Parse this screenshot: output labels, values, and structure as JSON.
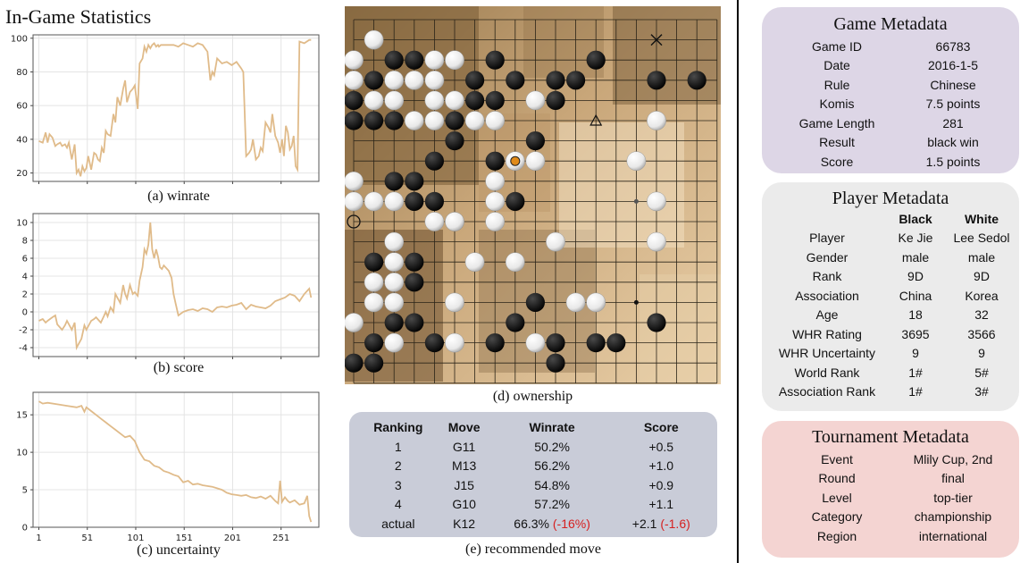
{
  "stats_title": "In-Game Statistics",
  "colors": {
    "line": "#e0bb8a",
    "game_panel": "#ddd6e6",
    "player_panel": "#ebebeb",
    "tournament_panel": "#f4d4d2",
    "rec_panel": "#c9ccd8"
  },
  "chart_data": [
    {
      "type": "line",
      "caption": "(a) winrate",
      "ylim": [
        15,
        102
      ],
      "yticks": [
        20,
        40,
        60,
        80,
        100
      ],
      "x": [
        1,
        5,
        8,
        10,
        12,
        15,
        18,
        20,
        23,
        25,
        28,
        30,
        32,
        35,
        38,
        40,
        42,
        44,
        46,
        48,
        50,
        52,
        55,
        58,
        60,
        62,
        64,
        66,
        68,
        70,
        72,
        75,
        78,
        80,
        82,
        85,
        88,
        90,
        92,
        95,
        98,
        100,
        103,
        105,
        108,
        110,
        112,
        114,
        116,
        118,
        120,
        122,
        124,
        125,
        127,
        130,
        135,
        140,
        145,
        150,
        155,
        160,
        165,
        170,
        175,
        178,
        180,
        182,
        185,
        190,
        195,
        200,
        205,
        210,
        212,
        215,
        218,
        220,
        222,
        225,
        228,
        230,
        232,
        235,
        238,
        240,
        242,
        245,
        248,
        250,
        252,
        254,
        256,
        258,
        260,
        262,
        264,
        266,
        268,
        270,
        275,
        280,
        282
      ],
      "values": [
        39,
        38,
        44,
        38,
        43,
        41,
        36,
        37,
        38,
        36,
        37,
        35,
        38,
        28,
        37,
        20,
        22,
        18,
        24,
        21,
        23,
        30,
        22,
        32,
        31,
        28,
        27,
        35,
        32,
        45,
        43,
        42,
        55,
        50,
        65,
        60,
        70,
        75,
        62,
        68,
        70,
        72,
        58,
        85,
        88,
        95,
        92,
        96,
        94,
        96,
        97,
        95,
        96,
        95,
        96,
        96,
        96,
        96,
        95,
        97,
        96,
        95,
        97,
        96,
        92,
        75,
        80,
        78,
        88,
        85,
        86,
        84,
        86,
        82,
        80,
        30,
        32,
        34,
        40,
        28,
        30,
        35,
        33,
        50,
        47,
        44,
        55,
        42,
        38,
        32,
        40,
        30,
        48,
        44,
        34,
        36,
        42,
        24,
        22,
        98,
        97,
        99,
        99
      ]
    },
    {
      "type": "line",
      "caption": "(b) score",
      "ylim": [
        -5,
        11
      ],
      "yticks": [
        -4,
        -2,
        0,
        2,
        4,
        6,
        8,
        10
      ],
      "x": [
        1,
        5,
        8,
        10,
        15,
        18,
        20,
        25,
        28,
        30,
        35,
        38,
        40,
        45,
        48,
        50,
        55,
        58,
        60,
        65,
        68,
        70,
        72,
        75,
        78,
        80,
        85,
        88,
        90,
        92,
        95,
        98,
        100,
        103,
        105,
        108,
        110,
        112,
        114,
        116,
        118,
        120,
        122,
        124,
        126,
        128,
        130,
        135,
        138,
        140,
        142,
        145,
        150,
        155,
        160,
        165,
        170,
        175,
        180,
        185,
        190,
        195,
        200,
        205,
        210,
        215,
        220,
        225,
        230,
        235,
        240,
        245,
        250,
        255,
        260,
        265,
        270,
        275,
        280,
        282
      ],
      "values": [
        -1,
        -0.8,
        -1.2,
        -1,
        -0.6,
        -0.4,
        -1.4,
        -2,
        -1.5,
        -1,
        -2,
        -1.2,
        -4,
        -3,
        -1.5,
        -2,
        -1,
        -0.8,
        -0.6,
        -1.2,
        -0.5,
        0,
        -0.5,
        0.5,
        0,
        2,
        1,
        3,
        2,
        1.5,
        3,
        2,
        2.2,
        1.8,
        3.5,
        5,
        7,
        6.5,
        7.5,
        10,
        7,
        6,
        7,
        6.2,
        5,
        4.8,
        5.2,
        4.6,
        3.8,
        2,
        1,
        -0.4,
        0,
        0.2,
        0.3,
        0.1,
        0.4,
        0.3,
        0,
        0.5,
        0.6,
        0.5,
        0.7,
        0.8,
        1,
        0.3,
        0.8,
        0.6,
        0.5,
        0.4,
        0.7,
        1.2,
        1.4,
        1.6,
        2,
        1.8,
        1.2,
        2,
        2.6,
        1.6
      ]
    },
    {
      "type": "line",
      "caption": "(c) uncertainty",
      "ylim": [
        0,
        18
      ],
      "yticks": [
        0,
        5,
        10,
        15
      ],
      "xticks": [
        1,
        51,
        101,
        151,
        201,
        251
      ],
      "xlim": [
        -5,
        290
      ],
      "x": [
        1,
        5,
        10,
        20,
        30,
        40,
        45,
        48,
        50,
        55,
        60,
        65,
        70,
        75,
        80,
        85,
        90,
        95,
        100,
        105,
        110,
        115,
        120,
        125,
        130,
        135,
        140,
        145,
        150,
        155,
        160,
        165,
        170,
        175,
        180,
        185,
        190,
        195,
        200,
        205,
        210,
        215,
        220,
        225,
        230,
        235,
        240,
        245,
        248,
        250,
        252,
        255,
        258,
        260,
        265,
        270,
        275,
        278,
        280,
        282
      ],
      "values": [
        16.8,
        16.5,
        16.6,
        16.4,
        16.2,
        16,
        16.2,
        15.4,
        16,
        15.5,
        15,
        14.5,
        14,
        13.5,
        13,
        12.5,
        12,
        12.2,
        11.5,
        10,
        9,
        8.8,
        8.2,
        8,
        7.5,
        7.3,
        7,
        6.8,
        6,
        6.2,
        5.7,
        5.8,
        5.6,
        5.5,
        5.4,
        5.2,
        5,
        4.6,
        4.4,
        4.3,
        4.2,
        4.3,
        4,
        3.9,
        4.1,
        3.8,
        4.2,
        3.5,
        3.2,
        6.2,
        3.4,
        4,
        3.5,
        3.3,
        3.6,
        3,
        3.2,
        4.2,
        1.5,
        0.7
      ]
    }
  ],
  "ownership_caption": "(d) ownership",
  "board": {
    "black": [
      [
        2,
        2
      ],
      [
        3,
        2
      ],
      [
        7,
        2
      ],
      [
        12,
        2
      ],
      [
        1,
        3
      ],
      [
        6,
        3
      ],
      [
        8,
        3
      ],
      [
        10,
        3
      ],
      [
        11,
        3
      ],
      [
        15,
        3
      ],
      [
        17,
        3
      ],
      [
        0,
        4
      ],
      [
        6,
        4
      ],
      [
        7,
        4
      ],
      [
        10,
        4
      ],
      [
        0,
        5
      ],
      [
        1,
        5
      ],
      [
        2,
        5
      ],
      [
        5,
        5
      ],
      [
        5,
        6
      ],
      [
        9,
        6
      ],
      [
        4,
        7
      ],
      [
        7,
        7
      ],
      [
        2,
        8
      ],
      [
        3,
        8
      ],
      [
        3,
        9
      ],
      [
        4,
        9
      ],
      [
        8,
        9
      ],
      [
        5,
        10
      ],
      [
        1,
        12
      ],
      [
        3,
        12
      ],
      [
        3,
        13
      ],
      [
        9,
        14
      ],
      [
        2,
        15
      ],
      [
        3,
        15
      ],
      [
        8,
        15
      ],
      [
        15,
        15
      ],
      [
        1,
        16
      ],
      [
        4,
        16
      ],
      [
        7,
        16
      ],
      [
        10,
        16
      ],
      [
        12,
        16
      ],
      [
        13,
        16
      ],
      [
        0,
        17
      ],
      [
        1,
        17
      ],
      [
        10,
        17
      ]
    ],
    "white": [
      [
        1,
        1
      ],
      [
        0,
        2
      ],
      [
        4,
        2
      ],
      [
        5,
        2
      ],
      [
        0,
        3
      ],
      [
        2,
        3
      ],
      [
        3,
        3
      ],
      [
        4,
        3
      ],
      [
        1,
        4
      ],
      [
        2,
        4
      ],
      [
        4,
        4
      ],
      [
        5,
        4
      ],
      [
        9,
        4
      ],
      [
        3,
        5
      ],
      [
        4,
        5
      ],
      [
        6,
        5
      ],
      [
        7,
        5
      ],
      [
        15,
        5
      ],
      [
        9,
        7
      ],
      [
        14,
        7
      ],
      [
        0,
        8
      ],
      [
        7,
        8
      ],
      [
        0,
        9
      ],
      [
        1,
        9
      ],
      [
        2,
        9
      ],
      [
        7,
        9
      ],
      [
        15,
        9
      ],
      [
        4,
        10
      ],
      [
        5,
        10
      ],
      [
        7,
        10
      ],
      [
        2,
        11
      ],
      [
        10,
        11
      ],
      [
        15,
        11
      ],
      [
        2,
        12
      ],
      [
        6,
        12
      ],
      [
        8,
        12
      ],
      [
        1,
        13
      ],
      [
        2,
        13
      ],
      [
        1,
        14
      ],
      [
        2,
        14
      ],
      [
        5,
        14
      ],
      [
        11,
        14
      ],
      [
        12,
        14
      ],
      [
        0,
        15
      ],
      [
        2,
        16
      ],
      [
        5,
        16
      ],
      [
        9,
        16
      ]
    ],
    "last_move": [
      8,
      7
    ],
    "circle_mark": [
      0,
      10
    ],
    "triangle_mark": [
      12,
      5
    ],
    "cross_mark": [
      15,
      1
    ],
    "small_dots": [
      [
        8,
        3
      ],
      [
        14,
        9
      ],
      [
        14,
        14
      ]
    ]
  },
  "rec": {
    "caption": "(e) recommended move",
    "headers": [
      "Ranking",
      "Move",
      "Winrate",
      "Score"
    ],
    "rows": [
      {
        "rank": "1",
        "move": "G11",
        "winrate": "50.2%",
        "wr_delta": "",
        "score": "+0.5",
        "sc_delta": ""
      },
      {
        "rank": "2",
        "move": "M13",
        "winrate": "56.2%",
        "wr_delta": "",
        "score": "+1.0",
        "sc_delta": ""
      },
      {
        "rank": "3",
        "move": "J15",
        "winrate": "54.8%",
        "wr_delta": "",
        "score": "+0.9",
        "sc_delta": ""
      },
      {
        "rank": "4",
        "move": "G10",
        "winrate": "57.2%",
        "wr_delta": "",
        "score": "+1.1",
        "sc_delta": ""
      },
      {
        "rank": "actual",
        "move": "K12",
        "winrate": "66.3%",
        "wr_delta": "(-16%)",
        "score": "+2.1",
        "sc_delta": "(-1.6)"
      }
    ]
  },
  "game_meta": {
    "title": "Game Metadata",
    "rows": [
      {
        "k": "Game ID",
        "v": "66783"
      },
      {
        "k": "Date",
        "v": "2016-1-5"
      },
      {
        "k": "Rule",
        "v": "Chinese"
      },
      {
        "k": "Komis",
        "v": "7.5 points"
      },
      {
        "k": "Game Length",
        "v": "281"
      },
      {
        "k": "Result",
        "v": "black win"
      },
      {
        "k": "Score",
        "v": "1.5 points"
      }
    ]
  },
  "player_meta": {
    "title": "Player Metadata",
    "black_header": "Black",
    "white_header": "White",
    "rows": [
      {
        "k": "Player",
        "b": "Ke Jie",
        "w": "Lee Sedol"
      },
      {
        "k": "Gender",
        "b": "male",
        "w": "male"
      },
      {
        "k": "Rank",
        "b": "9D",
        "w": "9D"
      },
      {
        "k": "Association",
        "b": "China",
        "w": "Korea"
      },
      {
        "k": "Age",
        "b": "18",
        "w": "32"
      },
      {
        "k": "WHR Rating",
        "b": "3695",
        "w": "3566"
      },
      {
        "k": "WHR Uncertainty",
        "b": "9",
        "w": "9"
      },
      {
        "k": "World Rank",
        "b": "1#",
        "w": "5#"
      },
      {
        "k": "Association Rank",
        "b": "1#",
        "w": "3#"
      }
    ]
  },
  "tournament_meta": {
    "title": "Tournament Metadata",
    "rows": [
      {
        "k": "Event",
        "v": "Mlily Cup, 2nd"
      },
      {
        "k": "Round",
        "v": "final"
      },
      {
        "k": "Level",
        "v": "top-tier"
      },
      {
        "k": "Category",
        "v": "championship"
      },
      {
        "k": "Region",
        "v": "international"
      }
    ]
  }
}
